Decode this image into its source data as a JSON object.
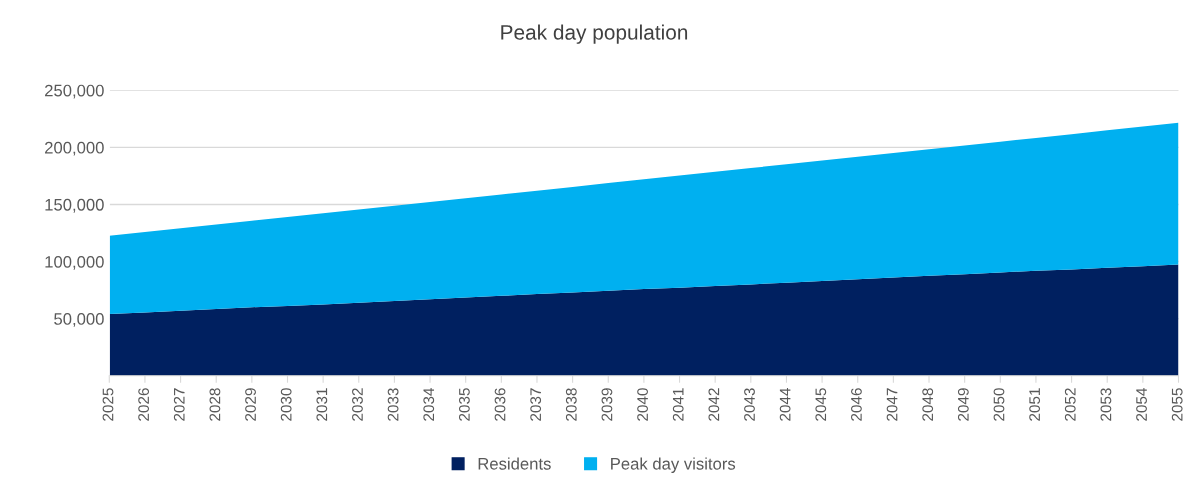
{
  "chart_data": {
    "type": "area",
    "title": "Peak day population",
    "stacked": true,
    "categories": [
      "2025",
      "2026",
      "2027",
      "2028",
      "2029",
      "2030",
      "2031",
      "2032",
      "2033",
      "2034",
      "2035",
      "2036",
      "2037",
      "2038",
      "2039",
      "2040",
      "2041",
      "2042",
      "2043",
      "2044",
      "2045",
      "2046",
      "2047",
      "2048",
      "2049",
      "2050",
      "2051",
      "2052",
      "2053",
      "2054",
      "2055"
    ],
    "series": [
      {
        "name": "Residents",
        "color": "#002060",
        "values": [
          54000,
          55500,
          57000,
          58500,
          60000,
          61000,
          62500,
          64000,
          65500,
          67000,
          68500,
          70000,
          71500,
          73000,
          74500,
          76000,
          77000,
          78500,
          80000,
          81500,
          83000,
          84500,
          86000,
          87500,
          89000,
          90500,
          92000,
          93000,
          94500,
          96000,
          97500
        ]
      },
      {
        "name": "Peak day visitors",
        "color": "#00b0f0",
        "values": [
          68500,
          70300,
          72100,
          73900,
          75700,
          78000,
          79800,
          81600,
          83400,
          85200,
          87000,
          88800,
          90600,
          92400,
          94200,
          96000,
          98300,
          100100,
          101900,
          103700,
          105500,
          107300,
          109100,
          110900,
          112700,
          114500,
          116300,
          118600,
          120400,
          122200,
          124000
        ]
      }
    ],
    "ylim": [
      0,
      250000
    ],
    "yticks": [
      {
        "value": 0,
        "label": null
      },
      {
        "value": 50000,
        "label": "50,000"
      },
      {
        "value": 100000,
        "label": "100,000"
      },
      {
        "value": 150000,
        "label": "150,000"
      },
      {
        "value": 200000,
        "label": "200,000"
      },
      {
        "value": 250000,
        "label": "250,000"
      }
    ],
    "grid": "y",
    "legend": "bottom"
  }
}
